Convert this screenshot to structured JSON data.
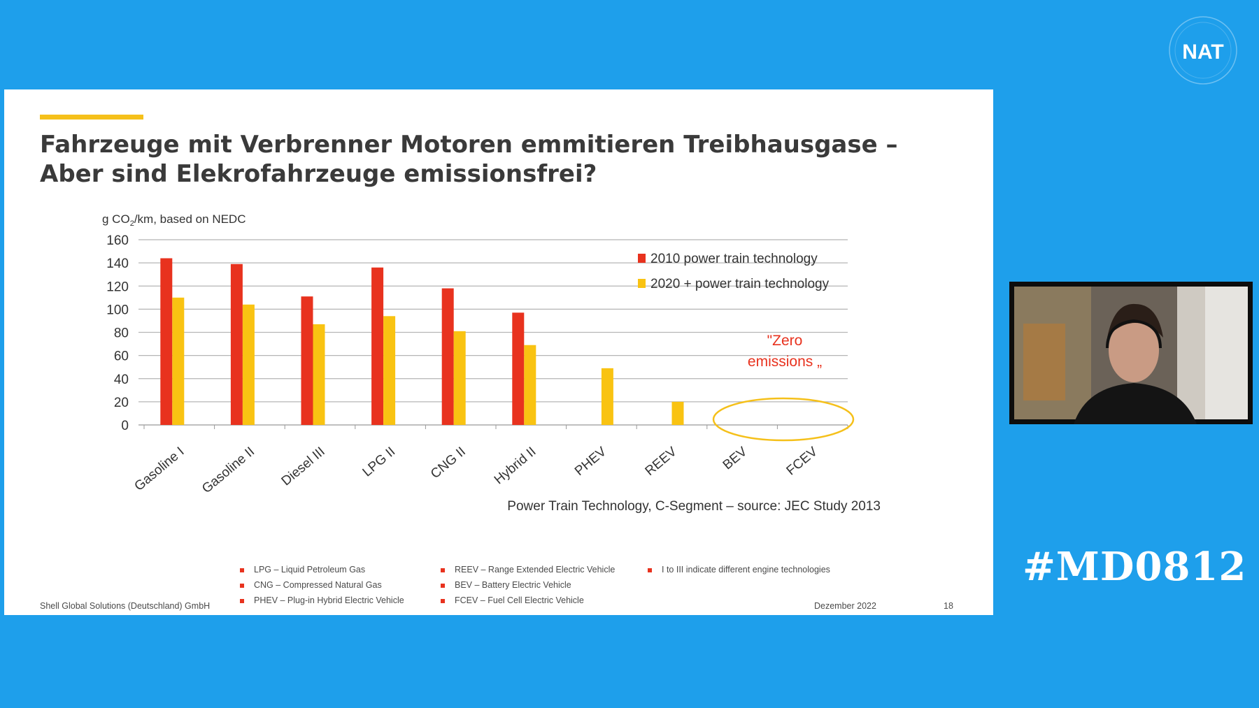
{
  "meeting": {
    "logo_text": "NAT",
    "hashtag": "#MD0812"
  },
  "slide": {
    "title_line1": "Fahrzeuge mit Verbrenner Motoren emmitieren Treibhausgase –",
    "title_line2": "Aber sind Elekrofahrzeuge emissionsfrei?",
    "source_note": "Power Train Technology, C-Segment – source: JEC Study 2013",
    "annotation": [
      "\"Zero",
      "emissions „"
    ],
    "notes": [
      "LPG – Liquid Petroleum Gas",
      "CNG – Compressed Natural Gas",
      "PHEV – Plug-in Hybrid Electric Vehicle",
      "REEV – Range Extended Electric Vehicle",
      "BEV – Battery Electric Vehicle",
      "FCEV – Fuel Cell Electric Vehicle",
      "I to III indicate different engine technologies"
    ],
    "footer_left": "Shell Global Solutions (Deutschland) GmbH",
    "footer_date": "Dezember 2022",
    "footer_page": "18"
  },
  "chart_data": {
    "type": "bar",
    "ylabel": "g CO2/km, based on NEDC",
    "ylim": [
      0,
      160
    ],
    "yticks": [
      0,
      20,
      40,
      60,
      80,
      100,
      120,
      140,
      160
    ],
    "categories": [
      "Gasoline   I",
      "Gasoline   II",
      "Diesel   III",
      "LPG   II",
      "CNG   II",
      "Hybrid   II",
      "PHEV",
      "REEV",
      "BEV",
      "FCEV"
    ],
    "series": [
      {
        "name": "2010 power train technology",
        "color": "#E8321E",
        "values": [
          144,
          139,
          111,
          136,
          118,
          97,
          null,
          null,
          null,
          null
        ]
      },
      {
        "name": "2020 + power train technology",
        "color": "#F9C312",
        "values": [
          110,
          104,
          87,
          94,
          81,
          69,
          49,
          20,
          null,
          null
        ]
      }
    ],
    "legend": "top-right",
    "grid": true
  },
  "colors": {
    "background": "#1E9FEB",
    "accent": "#F5C01A",
    "red": "#E8321E",
    "yellow": "#F9C312"
  }
}
